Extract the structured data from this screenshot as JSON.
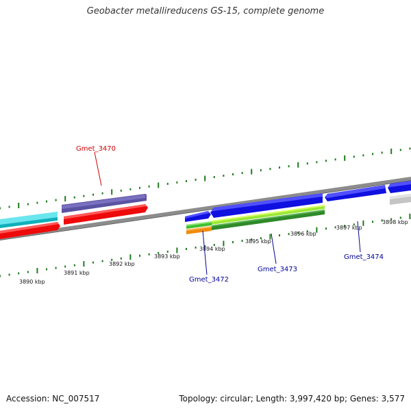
{
  "title": "Geobacter metallireducens GS-15, complete genome",
  "footer": {
    "accession": "Accession: NC_007517",
    "summary": "Topology: circular; Length: 3,997,420 bp; Genes: 3,577"
  },
  "colors": {
    "backbone": "#8c8c8c",
    "tick": "#1e7a1e",
    "label_red": "#cc0000",
    "label_blue": "#000099",
    "cyan": "#19c8d2",
    "purple": "#4b3f8f",
    "red": "#ee0a0a",
    "blue": "#1010e0",
    "lightgreen": "#7ee82e",
    "yellowgreen": "#bdf01e",
    "darkgreen": "#2f8a2a",
    "orange": "#f08c0c",
    "grey": "#c4c4c4"
  },
  "scale": {
    "ticks": [
      {
        "label": "3890 kbp"
      },
      {
        "label": "3891 kbp"
      },
      {
        "label": "3892 kbp"
      },
      {
        "label": "3893 kbp"
      },
      {
        "label": "3894 kbp"
      },
      {
        "label": "3895 kbp"
      },
      {
        "label": "3896 kbp"
      },
      {
        "label": "3897 kbp"
      },
      {
        "label": "3898 kbp"
      }
    ]
  },
  "gene_labels": [
    {
      "name": "Gmet_3470",
      "color": "label_red"
    },
    {
      "name": "Gmet_3472",
      "color": "label_blue"
    },
    {
      "name": "Gmet_3473",
      "color": "label_blue"
    },
    {
      "name": "Gmet_3474",
      "color": "label_blue"
    }
  ]
}
